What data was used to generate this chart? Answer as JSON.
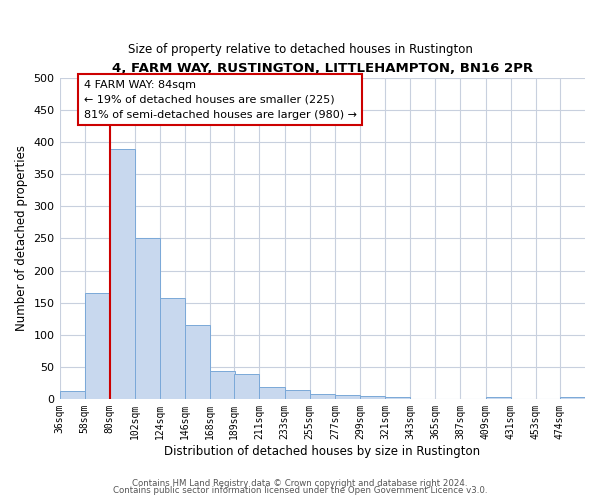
{
  "title": "4, FARM WAY, RUSTINGTON, LITTLEHAMPTON, BN16 2PR",
  "subtitle": "Size of property relative to detached houses in Rustington",
  "xlabel": "Distribution of detached houses by size in Rustington",
  "ylabel": "Number of detached properties",
  "bar_color": "#c8d8ee",
  "bar_edgecolor": "#7aa8d8",
  "grid_color": "#c8d0de",
  "background_color": "#ffffff",
  "annotation_box_color": "#ffffff",
  "annotation_box_edgecolor": "#cc0000",
  "vline_color": "#cc0000",
  "vline_x": 80,
  "categories": [
    "36sqm",
    "58sqm",
    "80sqm",
    "102sqm",
    "124sqm",
    "146sqm",
    "168sqm",
    "189sqm",
    "211sqm",
    "233sqm",
    "255sqm",
    "277sqm",
    "299sqm",
    "321sqm",
    "343sqm",
    "365sqm",
    "387sqm",
    "409sqm",
    "431sqm",
    "453sqm",
    "474sqm"
  ],
  "bin_edges": [
    36,
    58,
    80,
    102,
    124,
    146,
    168,
    189,
    211,
    233,
    255,
    277,
    299,
    321,
    343,
    365,
    387,
    409,
    431,
    453,
    474
  ],
  "bin_width": 22,
  "values": [
    12,
    165,
    390,
    250,
    157,
    115,
    43,
    39,
    18,
    13,
    8,
    6,
    4,
    3,
    0,
    0,
    0,
    3,
    0,
    0,
    3
  ],
  "ylim": [
    0,
    500
  ],
  "yticks": [
    0,
    50,
    100,
    150,
    200,
    250,
    300,
    350,
    400,
    450,
    500
  ],
  "ann_line1": "4 FARM WAY: 84sqm",
  "ann_line2": "← 19% of detached houses are smaller (225)",
  "ann_line3": "81% of semi-detached houses are larger (980) →",
  "footer1": "Contains HM Land Registry data © Crown copyright and database right 2024.",
  "footer2": "Contains public sector information licensed under the Open Government Licence v3.0."
}
